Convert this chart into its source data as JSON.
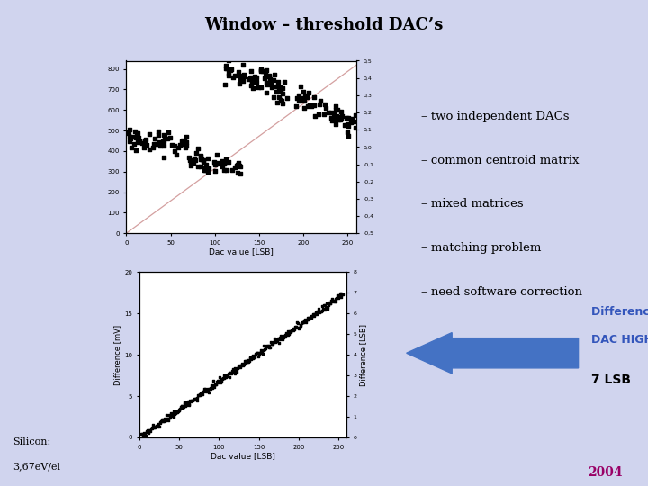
{
  "title": "Window – threshold DAC’s",
  "bg_color": "#d0d4ee",
  "title_box_color": "#c0c8e8",
  "bullet_points": [
    "– two independent DACs",
    "– common centroid matrix",
    "– mixed matrices",
    "– matching problem",
    "– need software correction"
  ],
  "arrow_text_line1": "Difference between",
  "arrow_text_line2": "DAC HIGH and LOW",
  "arrow_text_line3": "7 LSB",
  "arrow_color": "#4472c4",
  "arrow_text_color": "#3355bb",
  "bottom_left_line1": "Silicon:",
  "bottom_left_line2": "3,67eV/el",
  "year_text": "2004",
  "year_color": "#990066",
  "plot1_xlabel": "Dac value [LSB]",
  "plot2_xlabel": "Dac value [LSB]",
  "plot2_ylabel": "Difference [mV]",
  "plot2_ylabel2": "Difference [LSB]",
  "plot_bg": "#ffffff",
  "scatter_color": "#000000",
  "line_color": "#d4a0a0",
  "plot_frame_color": "#e8eaf0",
  "plot_frame_inner": "#f8f8f8"
}
